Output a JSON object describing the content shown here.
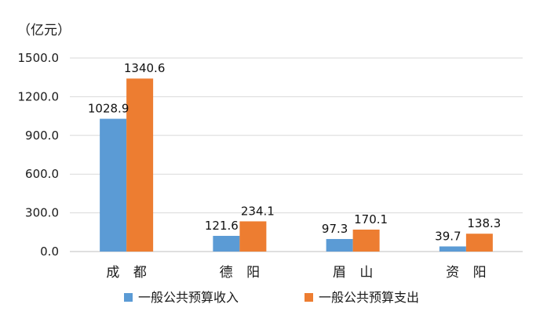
{
  "chart_data": {
    "type": "bar",
    "unit_label": "（亿元）",
    "categories": [
      "成 都",
      "德 阳",
      "眉 山",
      "资 阳"
    ],
    "series": [
      {
        "name": "一般公共预算收入",
        "color": "#5b9bd5",
        "values": [
          1028.9,
          121.6,
          97.3,
          39.7
        ],
        "labels": [
          "1028.9",
          "121.6",
          "97.3",
          "39.7"
        ]
      },
      {
        "name": "一般公共预算支出",
        "color": "#ed7d31",
        "values": [
          1340.6,
          234.1,
          170.1,
          138.3
        ],
        "labels": [
          "1340.6",
          "234.1",
          "170.1",
          "138.3"
        ]
      }
    ],
    "ylim": [
      0,
      1500
    ],
    "yticks": [
      "0.0",
      "300.0",
      "600.0",
      "900.0",
      "1200.0",
      "1500.0"
    ],
    "ytick_values": [
      0,
      300,
      600,
      900,
      1200,
      1500
    ],
    "grid": true,
    "legend": "bottom",
    "gridline_color": "#d9d9d9",
    "axis_color": "#bfbfbf"
  }
}
